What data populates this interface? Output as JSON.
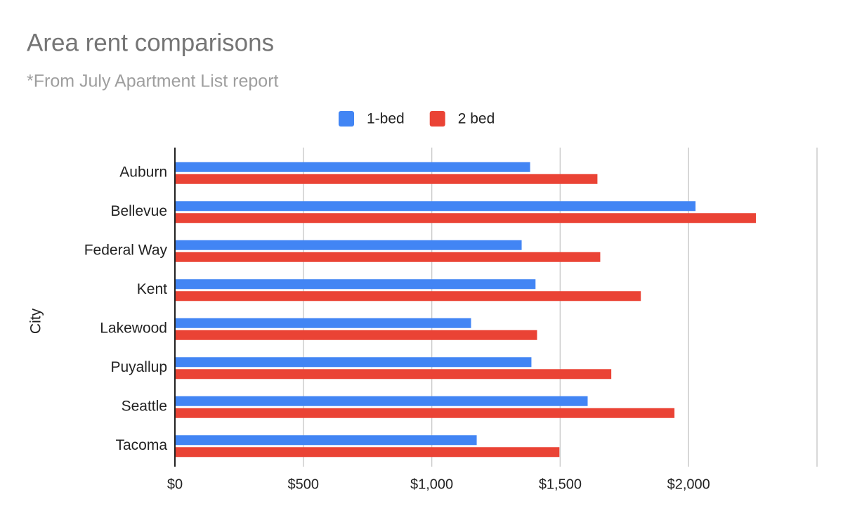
{
  "chart_data": {
    "type": "bar",
    "orientation": "horizontal",
    "title": "Area rent comparisons",
    "subtitle": "*From July Apartment List report",
    "y_label": "City",
    "categories": [
      "Auburn",
      "Bellevue",
      "Federal Way",
      "Kent",
      "Lakewood",
      "Puyallup",
      "Seattle",
      "Tacoma"
    ],
    "series": [
      {
        "name": "1-bed",
        "color": "#4285f4",
        "values": [
          1383,
          2027,
          1350,
          1404,
          1153,
          1388,
          1607,
          1175
        ]
      },
      {
        "name": "2 bed",
        "color": "#ea4335",
        "values": [
          1645,
          2262,
          1656,
          1814,
          1410,
          1699,
          1945,
          1497
        ]
      }
    ],
    "xlim": [
      0,
      2500
    ],
    "xticks": [
      {
        "value": 0,
        "label": "$0"
      },
      {
        "value": 500,
        "label": "$500"
      },
      {
        "value": 1000,
        "label": "$1,000"
      },
      {
        "value": 1500,
        "label": "$1,500"
      },
      {
        "value": 2000,
        "label": "$2,000"
      }
    ],
    "grid": true,
    "legend": "top"
  }
}
